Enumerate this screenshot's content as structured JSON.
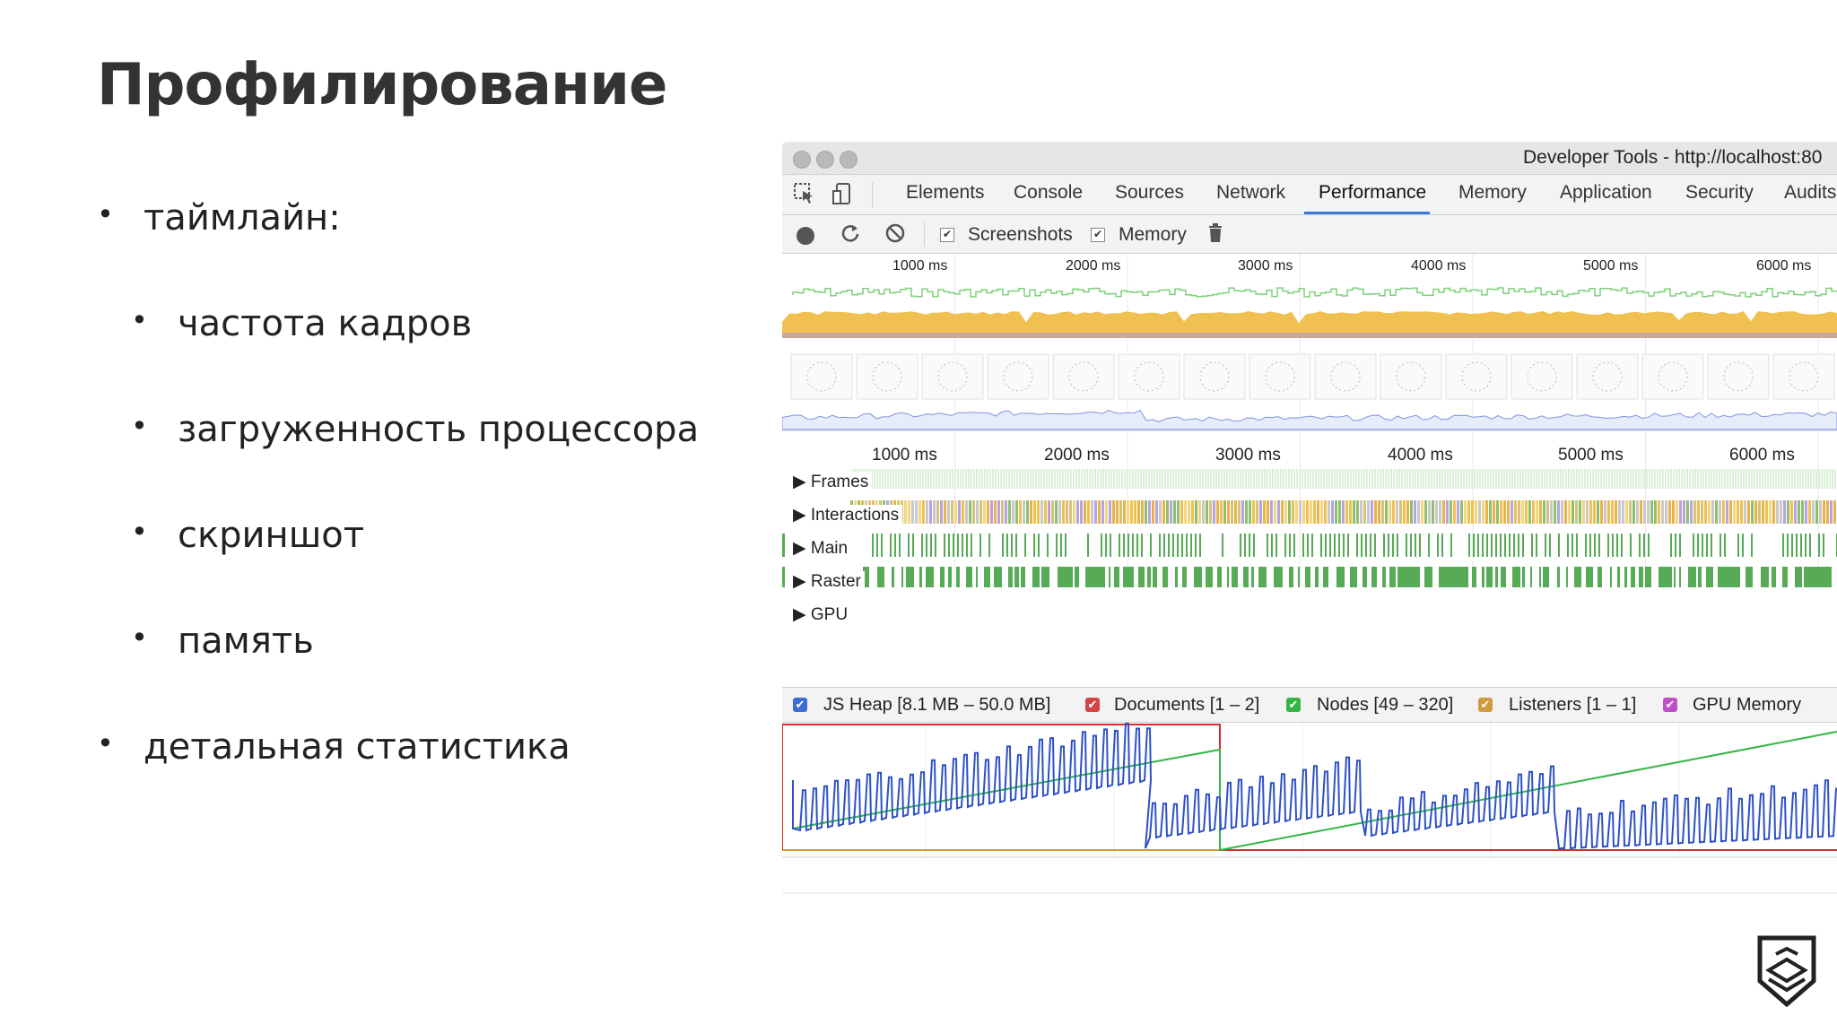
{
  "slide": {
    "title": "Профилирование",
    "bullets": [
      {
        "text": "таймлайн:",
        "level": 0
      },
      {
        "text": "частота кадров",
        "level": 1
      },
      {
        "text": "загруженность процессора",
        "level": 1
      },
      {
        "text": "скриншот",
        "level": 1
      },
      {
        "text": "память",
        "level": 1
      },
      {
        "text": "детальная статистика",
        "level": 0
      }
    ],
    "bullet_glyph": "•"
  },
  "devtools": {
    "window_title": "Developer Tools - http://localhost:80",
    "tabs": [
      {
        "label": "Elements"
      },
      {
        "label": "Console"
      },
      {
        "label": "Sources"
      },
      {
        "label": "Network"
      },
      {
        "label": "Performance",
        "active": true
      },
      {
        "label": "Memory"
      },
      {
        "label": "Application"
      },
      {
        "label": "Security"
      },
      {
        "label": "Audits"
      }
    ],
    "toolbar": {
      "screenshots_label": "Screenshots",
      "screenshots_checked": true,
      "memory_label": "Memory",
      "memory_checked": true
    },
    "ruler_ticks": [
      "1000 ms",
      "2000 ms",
      "3000 ms",
      "4000 ms",
      "5000 ms",
      "6000 ms"
    ],
    "tracks": [
      {
        "label": "Frames"
      },
      {
        "label": "Interactions"
      },
      {
        "label": "Main"
      },
      {
        "label": "Raster"
      },
      {
        "label": "GPU"
      }
    ],
    "memory_legend": [
      {
        "label": "JS Heap [8.1 MB – 50.0 MB]",
        "color": "#3f6bd4"
      },
      {
        "label": "Documents [1 – 2]",
        "color": "#d64545"
      },
      {
        "label": "Nodes [49 – 320]",
        "color": "#35b545"
      },
      {
        "label": "Listeners [1 – 1]",
        "color": "#d09a40"
      },
      {
        "label": "GPU Memory",
        "color": "#c04ec8"
      }
    ],
    "colors": {
      "fps": "#7ed07a",
      "cpu_scripting": "#f0c150",
      "gpu": "#58ab56",
      "js_heap": "#2d50c8",
      "documents": "#d22e2e",
      "nodes": "#35b545",
      "listeners": "#d09a40",
      "accent": "#3879d9"
    }
  }
}
